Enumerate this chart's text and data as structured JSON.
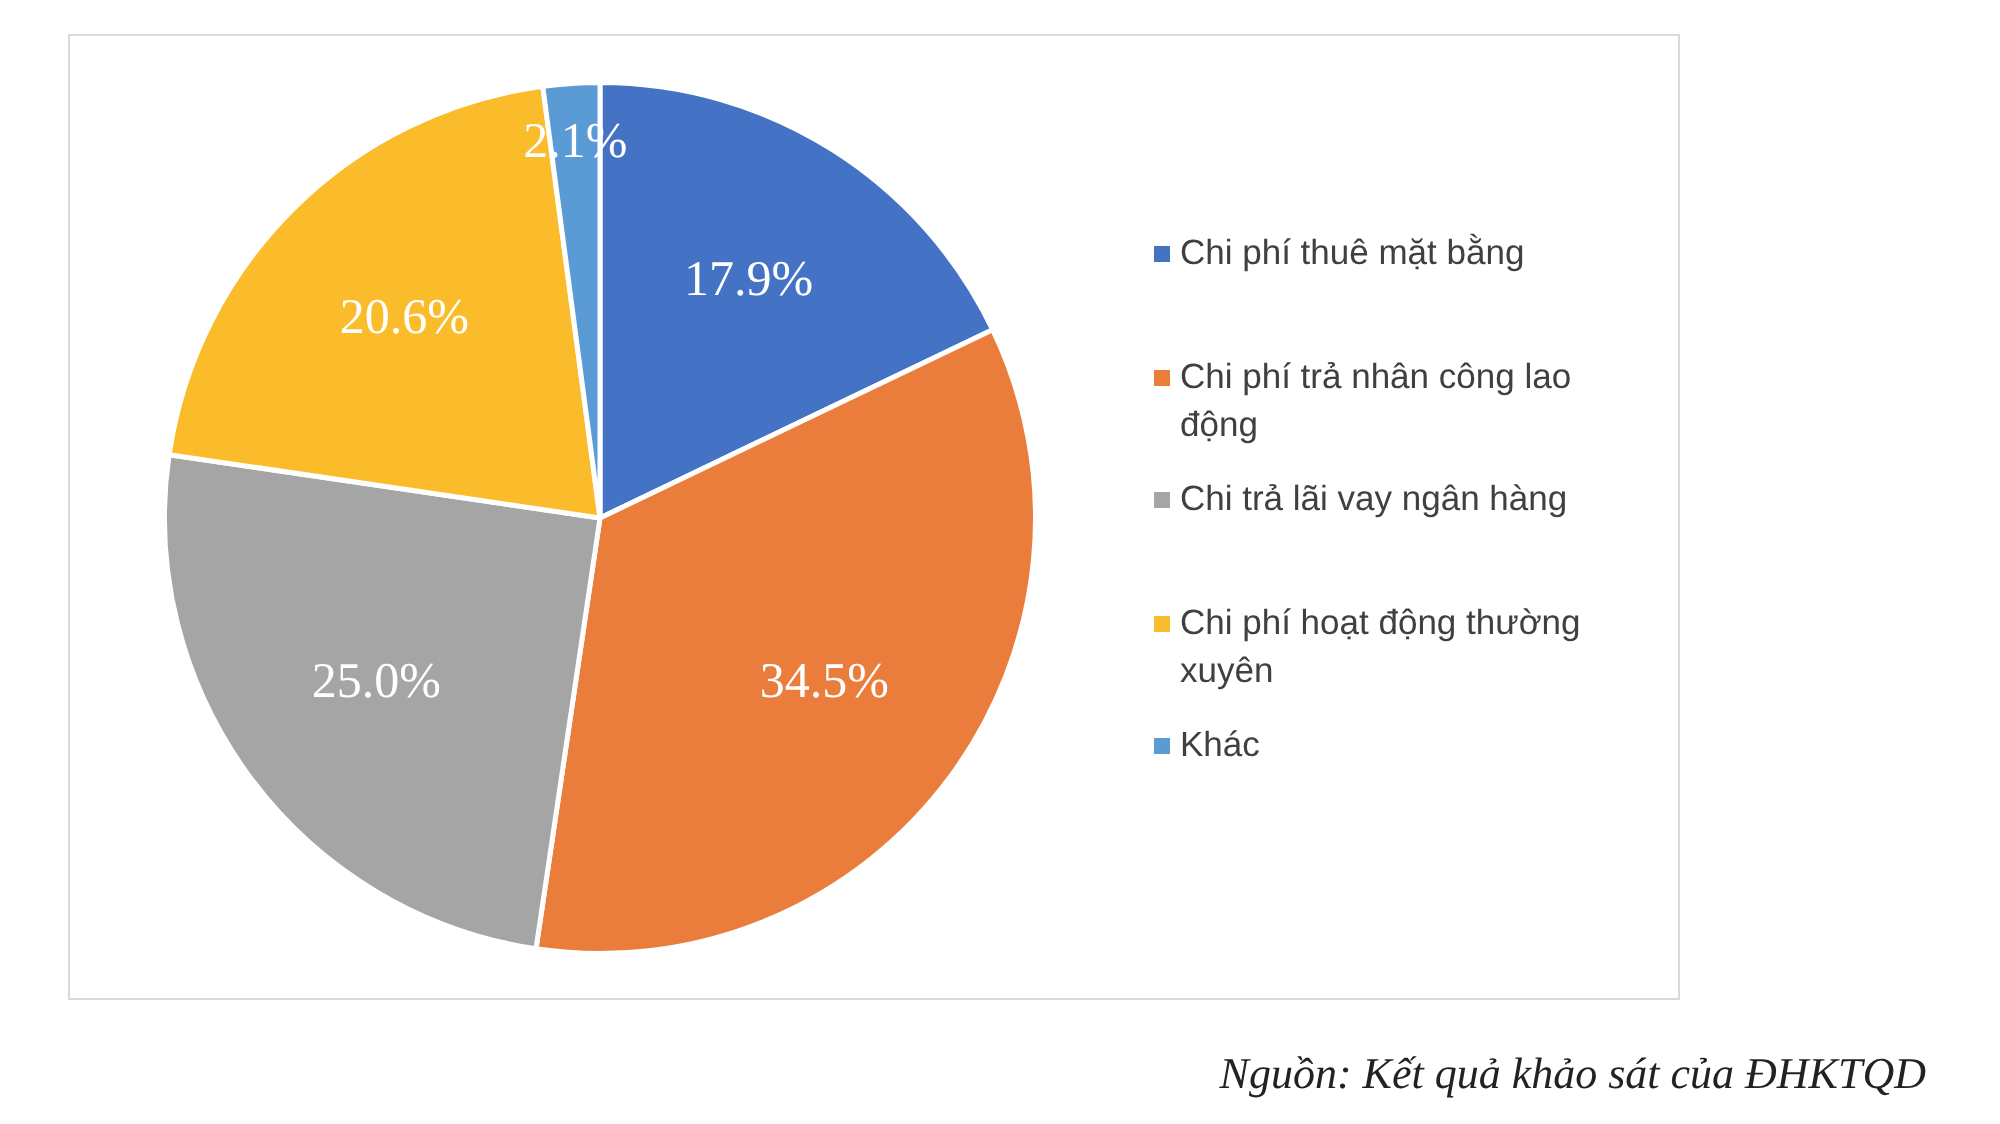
{
  "chart_data": {
    "type": "pie",
    "categories": [
      "Chi phí thuê mặt bằng",
      "Chi phí trả nhân công lao động",
      "Chi trả lãi vay ngân hàng",
      "Chi phí hoạt động thường xuyên",
      "Khác"
    ],
    "values": [
      17.9,
      34.5,
      25.0,
      20.6,
      2.1
    ],
    "value_labels": [
      "17.9%",
      "34.5%",
      "25.0%",
      "20.6%",
      "2.1%"
    ],
    "colors": [
      "#4472c4",
      "#ea7d3b",
      "#a5a5a5",
      "#fbbc2c",
      "#5b9bd5"
    ],
    "legend": "right",
    "annotations": [
      "Nguồn: Kết quả khảo sát của ĐHKTQD"
    ]
  }
}
